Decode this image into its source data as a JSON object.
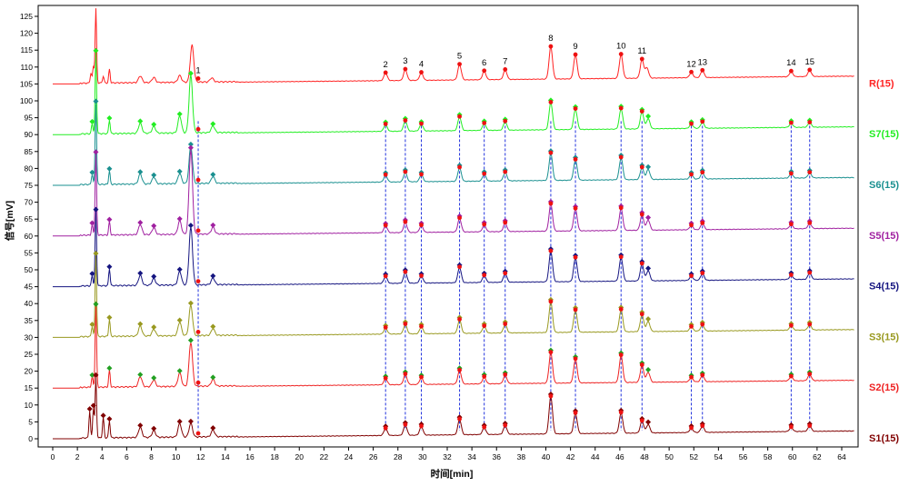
{
  "chart_data": {
    "type": "line",
    "xlabel": "时间[min]",
    "ylabel": "信号[mV]",
    "xlim": [
      0,
      65
    ],
    "ylim": [
      0,
      128
    ],
    "x_ticks": [
      0,
      2,
      4,
      6,
      8,
      10,
      12,
      14,
      16,
      18,
      20,
      22,
      24,
      26,
      28,
      30,
      32,
      34,
      36,
      38,
      40,
      42,
      44,
      46,
      48,
      50,
      52,
      54,
      56,
      58,
      60,
      62,
      64
    ],
    "y_ticks": [
      0,
      5,
      10,
      15,
      20,
      25,
      30,
      35,
      40,
      45,
      50,
      55,
      60,
      65,
      70,
      75,
      80,
      85,
      90,
      95,
      100,
      105,
      110,
      115,
      120,
      125
    ],
    "grid": false,
    "legend": "right-side labels",
    "baseline_start_min": 2.2,
    "peaks": [
      {
        "id": "1",
        "time": 11.8
      },
      {
        "id": "2",
        "time": 27.0
      },
      {
        "id": "3",
        "time": 28.6
      },
      {
        "id": "4",
        "time": 29.9
      },
      {
        "id": "5",
        "time": 33.0
      },
      {
        "id": "6",
        "time": 35.0
      },
      {
        "id": "7",
        "time": 36.7
      },
      {
        "id": "8",
        "time": 40.4
      },
      {
        "id": "9",
        "time": 42.4
      },
      {
        "id": "10",
        "time": 46.1
      },
      {
        "id": "11",
        "time": 47.8
      },
      {
        "id": "12",
        "time": 51.8
      },
      {
        "id": "13",
        "time": 52.7
      },
      {
        "id": "14",
        "time": 59.9
      },
      {
        "id": "15",
        "time": 61.4
      }
    ],
    "series": [
      {
        "name": "R(15)",
        "color": "#ff2222",
        "baseline": 105,
        "marker": false,
        "labels": true,
        "peaks": [
          [
            3.1,
            3
          ],
          [
            3.3,
            5
          ],
          [
            3.5,
            22
          ],
          [
            4.1,
            2
          ],
          [
            4.6,
            4
          ],
          [
            7.1,
            2
          ],
          [
            8.2,
            1.5
          ],
          [
            10.3,
            2
          ],
          [
            11.3,
            11
          ],
          [
            12.9,
            1.2
          ],
          [
            27.0,
            2.2
          ],
          [
            28.6,
            3.2
          ],
          [
            29.9,
            2.2
          ],
          [
            33.0,
            4.5
          ],
          [
            35.0,
            2.5
          ],
          [
            36.7,
            2.8
          ],
          [
            40.4,
            9.5
          ],
          [
            42.4,
            7
          ],
          [
            46.1,
            7
          ],
          [
            47.8,
            5.5
          ],
          [
            48.2,
            3
          ],
          [
            51.8,
            1.5
          ],
          [
            52.7,
            2
          ],
          [
            59.9,
            1.5
          ],
          [
            61.4,
            1.8
          ]
        ]
      },
      {
        "name": "S7(15)",
        "color": "#22ee22",
        "baseline": 90,
        "marker": true,
        "labels": false,
        "peaks": [
          [
            3.2,
            3
          ],
          [
            3.5,
            24
          ],
          [
            4.6,
            4
          ],
          [
            7.1,
            3
          ],
          [
            8.2,
            2
          ],
          [
            10.3,
            5
          ],
          [
            11.2,
            17
          ],
          [
            13.0,
            2
          ],
          [
            27.0,
            2
          ],
          [
            28.6,
            3
          ],
          [
            29.9,
            2
          ],
          [
            33.0,
            4
          ],
          [
            35.0,
            2
          ],
          [
            36.7,
            2.5
          ],
          [
            40.4,
            8
          ],
          [
            42.4,
            6
          ],
          [
            46.1,
            6
          ],
          [
            47.8,
            5
          ],
          [
            48.3,
            3
          ],
          [
            51.8,
            1.2
          ],
          [
            52.7,
            1.8
          ],
          [
            59.9,
            1.2
          ],
          [
            61.4,
            1.3
          ]
        ]
      },
      {
        "name": "S6(15)",
        "color": "#1a9090",
        "baseline": 75,
        "marker": true,
        "labels": false,
        "peaks": [
          [
            3.2,
            3
          ],
          [
            3.5,
            24
          ],
          [
            4.6,
            4
          ],
          [
            7.1,
            3
          ],
          [
            8.2,
            2
          ],
          [
            10.3,
            3
          ],
          [
            11.2,
            11
          ],
          [
            13.0,
            2
          ],
          [
            27.0,
            2
          ],
          [
            28.6,
            2.8
          ],
          [
            29.9,
            2
          ],
          [
            33.0,
            4
          ],
          [
            35.0,
            2
          ],
          [
            36.7,
            2.5
          ],
          [
            40.4,
            8
          ],
          [
            42.4,
            6
          ],
          [
            46.1,
            6.5
          ],
          [
            47.8,
            3.5
          ],
          [
            48.3,
            3
          ],
          [
            51.8,
            1.2
          ],
          [
            52.7,
            1.8
          ],
          [
            59.9,
            1.2
          ],
          [
            61.4,
            1.5
          ]
        ]
      },
      {
        "name": "S5(15)",
        "color": "#a020a0",
        "baseline": 60,
        "marker": true,
        "labels": false,
        "peaks": [
          [
            3.2,
            3
          ],
          [
            3.5,
            24
          ],
          [
            4.6,
            4
          ],
          [
            7.1,
            3
          ],
          [
            8.2,
            2
          ],
          [
            10.3,
            4
          ],
          [
            11.2,
            25
          ],
          [
            13.0,
            2
          ],
          [
            27.0,
            2
          ],
          [
            28.6,
            3
          ],
          [
            29.9,
            2
          ],
          [
            33.0,
            4
          ],
          [
            35.0,
            2
          ],
          [
            36.7,
            2.5
          ],
          [
            40.4,
            8
          ],
          [
            42.4,
            6.5
          ],
          [
            46.1,
            6.5
          ],
          [
            47.8,
            4.5
          ],
          [
            48.3,
            3
          ],
          [
            51.8,
            1.2
          ],
          [
            52.7,
            1.8
          ],
          [
            59.9,
            1.2
          ],
          [
            61.4,
            1.5
          ]
        ]
      },
      {
        "name": "S4(15)",
        "color": "#151580",
        "baseline": 45,
        "marker": true,
        "labels": false,
        "peaks": [
          [
            3.2,
            3
          ],
          [
            3.5,
            22
          ],
          [
            4.6,
            5
          ],
          [
            7.1,
            3
          ],
          [
            8.2,
            2
          ],
          [
            10.3,
            4
          ],
          [
            11.2,
            17
          ],
          [
            13.0,
            2
          ],
          [
            27.0,
            2
          ],
          [
            28.6,
            3.2
          ],
          [
            29.9,
            2
          ],
          [
            33.0,
            4.5
          ],
          [
            35.0,
            2
          ],
          [
            36.7,
            2.5
          ],
          [
            40.4,
            9
          ],
          [
            42.4,
            7
          ],
          [
            46.1,
            7
          ],
          [
            47.8,
            5
          ],
          [
            48.3,
            3
          ],
          [
            51.8,
            1.2
          ],
          [
            52.7,
            2
          ],
          [
            59.9,
            1.2
          ],
          [
            61.4,
            1.8
          ]
        ]
      },
      {
        "name": "S3(15)",
        "color": "#999920",
        "baseline": 30,
        "marker": true,
        "labels": false,
        "peaks": [
          [
            3.2,
            3
          ],
          [
            3.5,
            24
          ],
          [
            4.6,
            5
          ],
          [
            7.1,
            3
          ],
          [
            8.2,
            2
          ],
          [
            10.3,
            4
          ],
          [
            11.2,
            9
          ],
          [
            13.0,
            2
          ],
          [
            27.0,
            1.8
          ],
          [
            28.6,
            2.8
          ],
          [
            29.9,
            2
          ],
          [
            33.0,
            4
          ],
          [
            35.0,
            2
          ],
          [
            36.7,
            2.5
          ],
          [
            40.4,
            9
          ],
          [
            42.4,
            6.5
          ],
          [
            46.1,
            6.5
          ],
          [
            47.8,
            5
          ],
          [
            48.3,
            3
          ],
          [
            51.8,
            1.2
          ],
          [
            52.7,
            1.8
          ],
          [
            59.9,
            1.2
          ],
          [
            61.4,
            1.5
          ]
        ]
      },
      {
        "name": "S2(15)",
        "color": "#ee2222",
        "baseline": 15,
        "marker": true,
        "labels": false,
        "marker_color": "#22a022",
        "peaks": [
          [
            3.2,
            3
          ],
          [
            3.5,
            24
          ],
          [
            4.6,
            5
          ],
          [
            7.1,
            3
          ],
          [
            8.2,
            2
          ],
          [
            10.3,
            4
          ],
          [
            11.2,
            13
          ],
          [
            13.0,
            2
          ],
          [
            27.0,
            1.8
          ],
          [
            28.6,
            3
          ],
          [
            29.9,
            2
          ],
          [
            33.0,
            4
          ],
          [
            35.0,
            2
          ],
          [
            36.7,
            2.5
          ],
          [
            40.4,
            9
          ],
          [
            42.4,
            7
          ],
          [
            46.1,
            8
          ],
          [
            47.8,
            5
          ],
          [
            48.3,
            3
          ],
          [
            51.8,
            1.2
          ],
          [
            52.7,
            1.8
          ],
          [
            59.9,
            1.2
          ],
          [
            61.4,
            1.8
          ]
        ]
      },
      {
        "name": "S1(15)",
        "color": "#800000",
        "baseline": 0,
        "marker": true,
        "labels": false,
        "peaks": [
          [
            3.0,
            8
          ],
          [
            3.3,
            9
          ],
          [
            3.5,
            18
          ],
          [
            4.1,
            6
          ],
          [
            4.6,
            5
          ],
          [
            7.1,
            3
          ],
          [
            8.2,
            2
          ],
          [
            10.3,
            4
          ],
          [
            11.2,
            4
          ],
          [
            13.0,
            2
          ],
          [
            27.0,
            2
          ],
          [
            28.6,
            3
          ],
          [
            29.9,
            2.5
          ],
          [
            33.0,
            4.5
          ],
          [
            35.0,
            2
          ],
          [
            36.7,
            2.5
          ],
          [
            40.4,
            11
          ],
          [
            42.4,
            6
          ],
          [
            46.1,
            6
          ],
          [
            47.8,
            3.5
          ],
          [
            48.3,
            2.5
          ],
          [
            51.8,
            1.2
          ],
          [
            52.7,
            1.8
          ],
          [
            59.9,
            1.2
          ],
          [
            61.4,
            1.5
          ]
        ]
      }
    ]
  }
}
